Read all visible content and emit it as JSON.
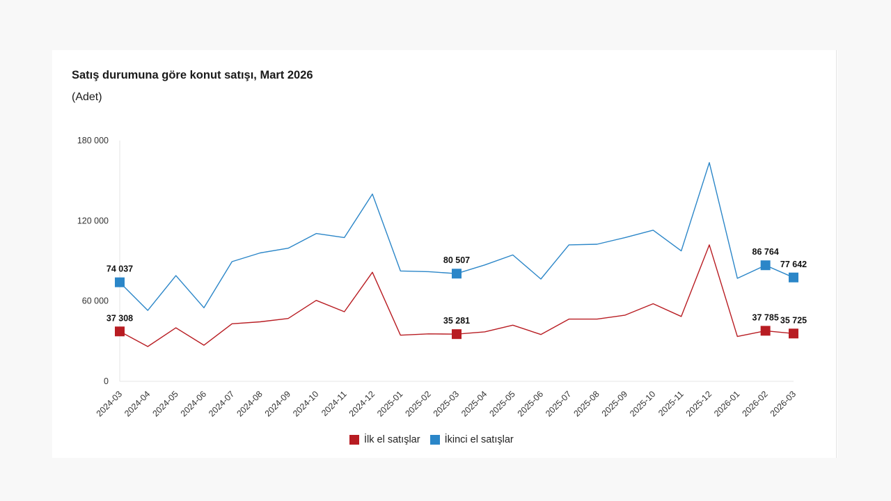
{
  "title": "Satış durumuna göre konut satışı, Mart 2026",
  "subtitle": "(Adet)",
  "colors": {
    "first_hand": "#b81c22",
    "second_hand": "#2b86c8"
  },
  "chart_data": {
    "type": "line",
    "title": "Satış durumuna göre konut satışı, Mart 2026",
    "subtitle": "(Adet)",
    "ylim": [
      0,
      180000
    ],
    "yticks": [
      0,
      60000,
      120000,
      180000
    ],
    "ytick_labels": [
      "0",
      "60 000",
      "120 000",
      "180 000"
    ],
    "grid": false,
    "legend_position": "bottom",
    "categories": [
      "2024-03",
      "2024-04",
      "2024-05",
      "2024-06",
      "2024-07",
      "2024-08",
      "2024-09",
      "2024-10",
      "2024-11",
      "2024-12",
      "2025-01",
      "2025-02",
      "2025-03",
      "2025-04",
      "2025-05",
      "2025-06",
      "2025-07",
      "2025-08",
      "2025-09",
      "2025-10",
      "2025-11",
      "2025-12",
      "2026-01",
      "2026-02",
      "2026-03"
    ],
    "series": [
      {
        "name": "İlk el satışlar",
        "color": "#b81c22",
        "values": [
          37308,
          26000,
          40000,
          27000,
          43000,
          44500,
          47000,
          60500,
          52000,
          81500,
          34500,
          35500,
          35281,
          37000,
          42000,
          35000,
          46500,
          46500,
          49500,
          58000,
          48500,
          102000,
          33500,
          37785,
          35725
        ],
        "labels": [
          {
            "index": 0,
            "text": "37 308"
          },
          {
            "index": 12,
            "text": "35 281"
          },
          {
            "index": 23,
            "text": "37 785"
          },
          {
            "index": 24,
            "text": "35 725"
          }
        ]
      },
      {
        "name": "İkinci el satışlar",
        "color": "#2b86c8",
        "values": [
          74037,
          53000,
          79000,
          55000,
          89500,
          96000,
          99500,
          110500,
          107500,
          140000,
          82500,
          82000,
          80507,
          87000,
          94500,
          76500,
          102000,
          102500,
          107500,
          113000,
          97500,
          163500,
          77000,
          86764,
          77642
        ],
        "labels": [
          {
            "index": 0,
            "text": "74 037"
          },
          {
            "index": 12,
            "text": "80 507"
          },
          {
            "index": 23,
            "text": "86 764"
          },
          {
            "index": 24,
            "text": "77 642"
          }
        ]
      }
    ]
  }
}
